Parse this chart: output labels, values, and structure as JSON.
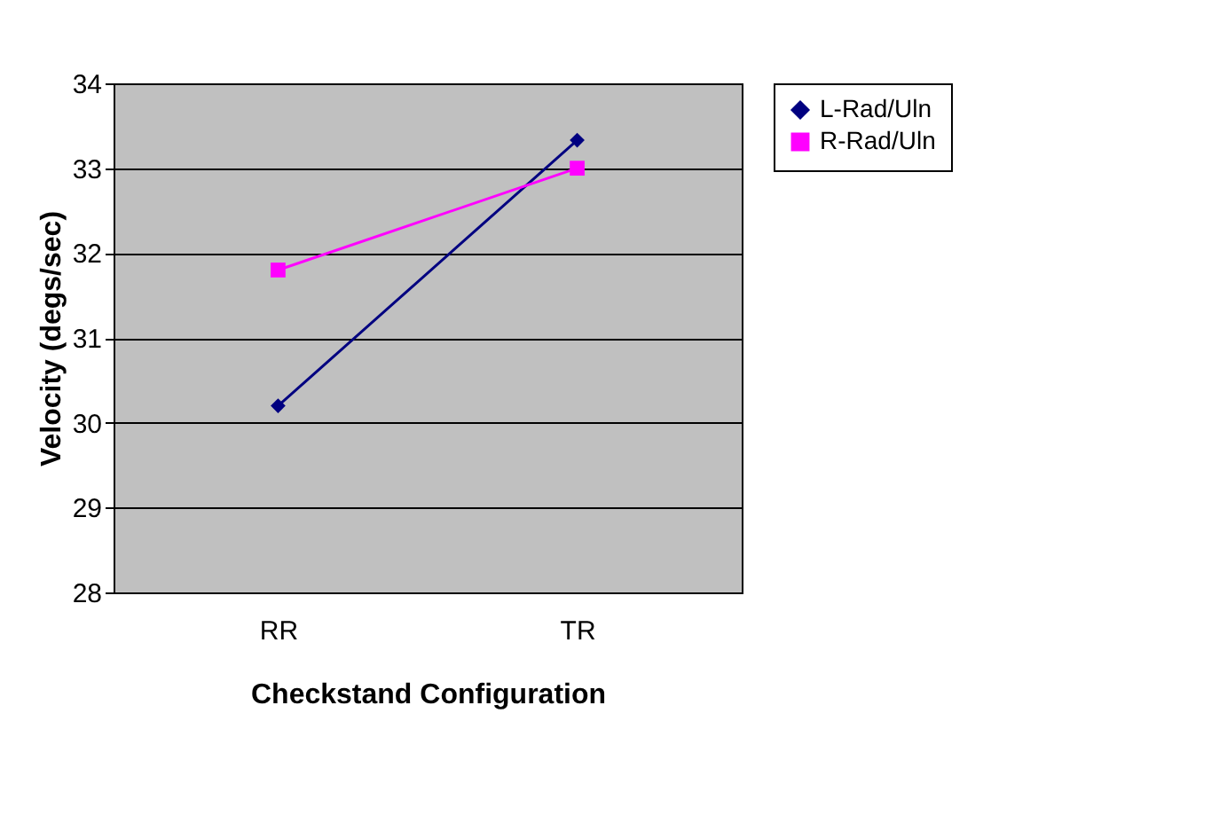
{
  "chart_data": {
    "type": "line",
    "xlabel": "Checkstand Configuration",
    "ylabel": "Velocity (degs/sec)",
    "categories": [
      "RR",
      "TR"
    ],
    "series": [
      {
        "name": "L-Rad/Uln",
        "color": "#000080",
        "marker": "diamond",
        "values": [
          30.2,
          33.33
        ]
      },
      {
        "name": "R-Rad/Uln",
        "color": "#ff00ff",
        "marker": "square",
        "values": [
          31.8,
          33.0
        ]
      }
    ],
    "ylim": [
      28,
      34
    ],
    "yticks": [
      28,
      29,
      30,
      31,
      32,
      33,
      34
    ],
    "grid": "y",
    "legend": "right",
    "line_style": "solid"
  }
}
